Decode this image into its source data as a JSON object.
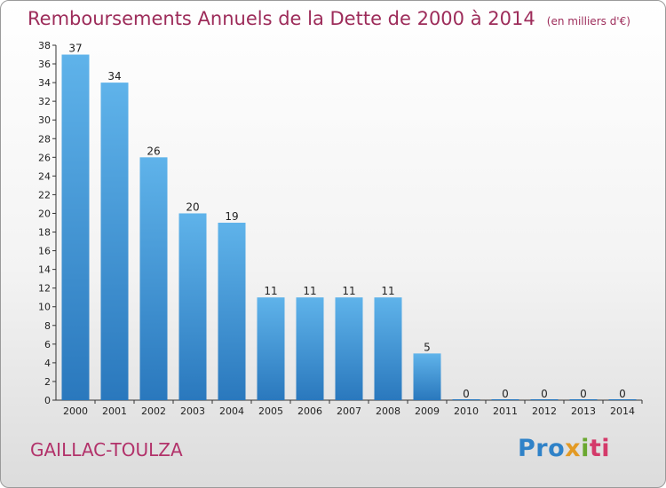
{
  "header": {
    "title": "Remboursements Annuels de la Dette de 2000 à 2014",
    "unit": "(en milliers d'€)"
  },
  "footer": {
    "commune": "GAILLAC-TOULZA",
    "logo_text": "Proxiti"
  },
  "colors": {
    "title": "#9d2c5a",
    "bar_light": "#5fb3ea",
    "bar_dark": "#2a78bd",
    "logo": [
      "#2f82c8",
      "#e39a24",
      "#6aa830",
      "#d43a6a"
    ]
  },
  "chart_data": {
    "type": "bar",
    "title": "Remboursements Annuels de la Dette de 2000 à 2014",
    "subtitle": "(en milliers d'€)",
    "xlabel": "",
    "ylabel": "",
    "categories": [
      "2000",
      "2001",
      "2002",
      "2003",
      "2004",
      "2005",
      "2006",
      "2007",
      "2008",
      "2009",
      "2010",
      "2011",
      "2012",
      "2013",
      "2014"
    ],
    "values": [
      37,
      34,
      26,
      20,
      19,
      11,
      11,
      11,
      11,
      5,
      0,
      0,
      0,
      0,
      0
    ],
    "ylim": [
      0,
      38
    ],
    "yticks": [
      0,
      2,
      4,
      6,
      8,
      10,
      12,
      14,
      16,
      18,
      20,
      22,
      24,
      26,
      28,
      30,
      32,
      34,
      36,
      38
    ],
    "grid": false,
    "legend": "none"
  }
}
